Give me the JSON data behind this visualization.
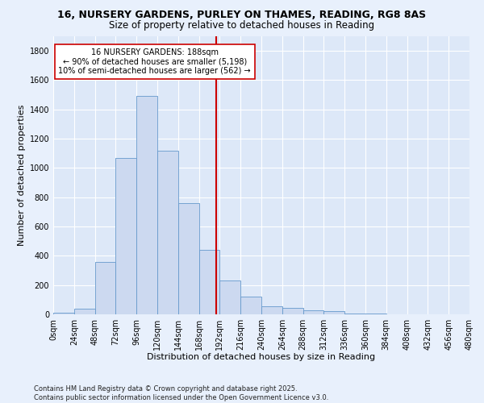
{
  "title": "16, NURSERY GARDENS, PURLEY ON THAMES, READING, RG8 8AS",
  "subtitle": "Size of property relative to detached houses in Reading",
  "xlabel": "Distribution of detached houses by size in Reading",
  "ylabel": "Number of detached properties",
  "bar_color": "#ccd9f0",
  "bar_edge_color": "#6699cc",
  "background_color": "#dde8f8",
  "fig_background_color": "#e8f0fc",
  "grid_color": "#ffffff",
  "bin_edges": [
    0,
    24,
    48,
    72,
    96,
    120,
    144,
    168,
    192,
    216,
    240,
    264,
    288,
    312,
    336,
    360,
    384,
    408,
    432,
    456,
    480
  ],
  "bin_labels": [
    "0sqm",
    "24sqm",
    "48sqm",
    "72sqm",
    "96sqm",
    "120sqm",
    "144sqm",
    "168sqm",
    "192sqm",
    "216sqm",
    "240sqm",
    "264sqm",
    "288sqm",
    "312sqm",
    "336sqm",
    "360sqm",
    "384sqm",
    "408sqm",
    "432sqm",
    "456sqm",
    "480sqm"
  ],
  "counts": [
    10,
    40,
    360,
    1070,
    1490,
    1120,
    760,
    440,
    230,
    120,
    55,
    45,
    30,
    20,
    5,
    3,
    2,
    1,
    0,
    0
  ],
  "property_size": 188,
  "red_line_color": "#cc0000",
  "annotation_line1": "16 NURSERY GARDENS: 188sqm",
  "annotation_line2": "← 90% of detached houses are smaller (5,198)",
  "annotation_line3": "10% of semi-detached houses are larger (562) →",
  "annotation_box_color": "#ffffff",
  "annotation_border_color": "#cc0000",
  "footer_text": "Contains HM Land Registry data © Crown copyright and database right 2025.\nContains public sector information licensed under the Open Government Licence v3.0.",
  "ylim": [
    0,
    1900
  ],
  "yticks": [
    0,
    200,
    400,
    600,
    800,
    1000,
    1200,
    1400,
    1600,
    1800
  ],
  "title_fontsize": 9,
  "subtitle_fontsize": 8.5,
  "label_fontsize": 8,
  "tick_fontsize": 7,
  "annotation_fontsize": 7,
  "footer_fontsize": 6
}
